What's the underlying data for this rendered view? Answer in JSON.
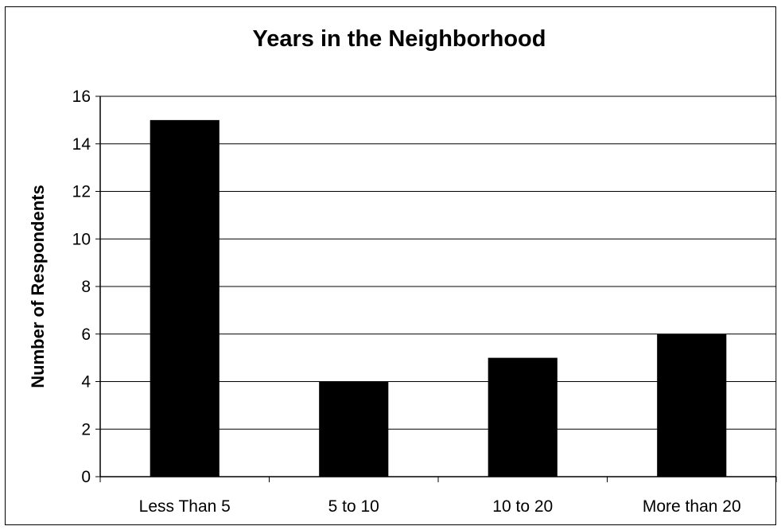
{
  "chart_data": {
    "type": "bar",
    "title": "Years in the Neighborhood",
    "xlabel": "",
    "ylabel": "Number of Respondents",
    "categories": [
      "Less Than 5",
      "5 to 10",
      "10 to 20",
      "More than 20"
    ],
    "values": [
      15,
      4,
      5,
      6
    ],
    "ylim": [
      0,
      16
    ],
    "yticks": [
      "0",
      "2",
      "4",
      "6",
      "8",
      "10",
      "12",
      "14",
      "16"
    ],
    "grid": true,
    "legend": "none",
    "colors": {
      "bar": "#000000",
      "grid": "#000000",
      "background": "#ffffff"
    }
  }
}
